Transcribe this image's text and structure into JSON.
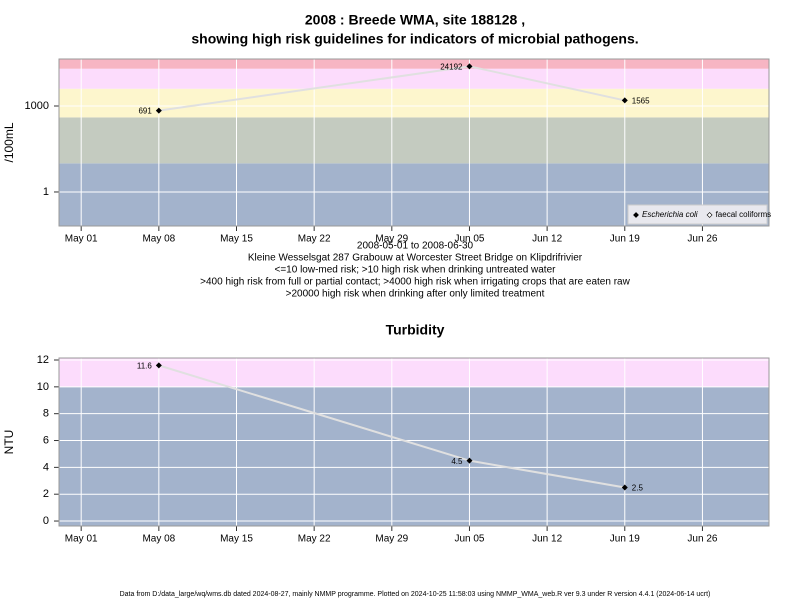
{
  "chart_data": [
    {
      "type": "line",
      "title": "2008 : Breede WMA, site 188128 ,",
      "subtitle": "showing high risk guidelines for indicators of microbial pathogens.",
      "y_label": "/100mL",
      "log_scale": true,
      "grid": true,
      "x": [
        "2008-05-08",
        "2008-06-05",
        "2008-06-19"
      ],
      "series": [
        {
          "name": "Escherichia coli",
          "color": "#000000",
          "values": [
            691,
            24192,
            1565
          ]
        },
        {
          "name": "faecal coliforms",
          "color": "#000000",
          "values": [
            null,
            null,
            null
          ]
        }
      ],
      "ylim": [
        0.065,
        43600
      ],
      "yticks": [
        1,
        1000
      ],
      "xlim": [
        "2008-04-29",
        "2008-07-02"
      ],
      "xticks": [
        {
          "value": "2008-05-01",
          "label": "May 01"
        },
        {
          "value": "2008-05-08",
          "label": "May 08"
        },
        {
          "value": "2008-05-15",
          "label": "May 15"
        },
        {
          "value": "2008-05-22",
          "label": "May 22"
        },
        {
          "value": "2008-05-29",
          "label": "May 29"
        },
        {
          "value": "2008-06-05",
          "label": "Jun 05"
        },
        {
          "value": "2008-06-12",
          "label": "Jun 12"
        },
        {
          "value": "2008-06-19",
          "label": "Jun 19"
        },
        {
          "value": "2008-06-26",
          "label": "Jun 26"
        }
      ],
      "thresholds": [
        10,
        400,
        4000,
        20000
      ],
      "band_colors": [
        "#a3b3cc",
        "#c4cbc0",
        "#fdf6cd",
        "#fcdcfc",
        "#f7b5c3"
      ],
      "legend_position": "bottom-right",
      "notes": [
        "2008-05-01 to 2008-06-30",
        "Kleine Wesselsgat 287 Grabouw at Worcester Street Bridge on Klipdrifrivier",
        "<=10 low-med risk; >10 high risk when drinking untreated water",
        ">400 high risk from full or partial contact; >4000 high risk when irrigating crops that are eaten raw",
        ">20000 high risk when drinking after only limited treatment"
      ]
    },
    {
      "type": "line",
      "title": "Turbidity",
      "y_label": "NTU",
      "log_scale": false,
      "grid": true,
      "x": [
        "2008-05-08",
        "2008-06-05",
        "2008-06-19"
      ],
      "series": [
        {
          "color": "#000000",
          "values": [
            11.6,
            4.5,
            2.5
          ]
        }
      ],
      "ylim": [
        -0.37,
        12.15
      ],
      "yticks": [
        0,
        2,
        4,
        6,
        8,
        10,
        12
      ],
      "xlim": [
        "2008-04-29",
        "2008-07-02"
      ],
      "xticks": [
        {
          "value": "2008-05-01",
          "label": "May 01"
        },
        {
          "value": "2008-05-08",
          "label": "May 08"
        },
        {
          "value": "2008-05-15",
          "label": "May 15"
        },
        {
          "value": "2008-05-22",
          "label": "May 22"
        },
        {
          "value": "2008-05-29",
          "label": "May 29"
        },
        {
          "value": "2008-06-05",
          "label": "Jun 05"
        },
        {
          "value": "2008-06-12",
          "label": "Jun 12"
        },
        {
          "value": "2008-06-19",
          "label": "Jun 19"
        },
        {
          "value": "2008-06-26",
          "label": "Jun 26"
        }
      ],
      "thresholds": [
        10
      ],
      "band_colors": [
        "#a3b3cc",
        "#fcdcfc"
      ]
    }
  ],
  "footer": "Data from D:/data_large/wq/wms.db dated 2024-08-27, mainly NMMP programme. Plotted on 2024-10-25 11:58:03 using NMMP_WMA_web.R ver 9.3 under R version 4.4.1 (2024-06-14 ucrt)"
}
